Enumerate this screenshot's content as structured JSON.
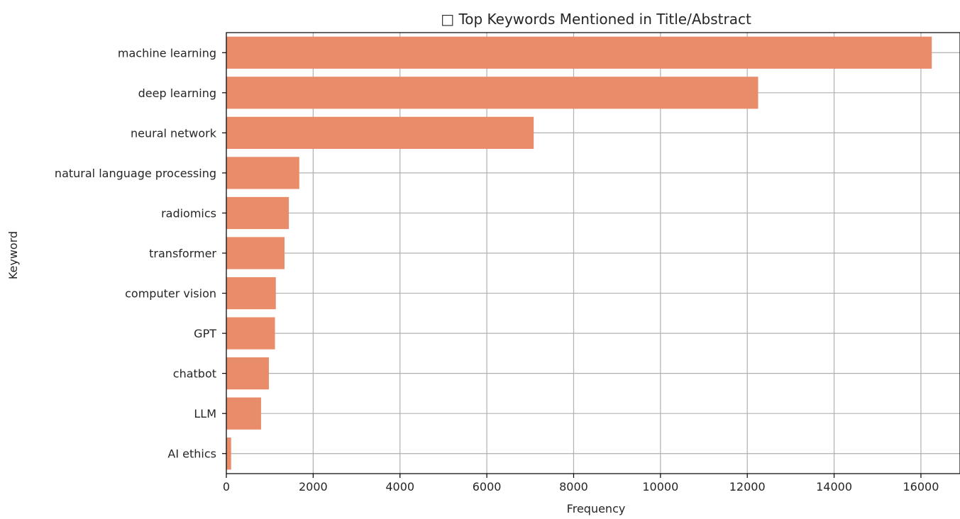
{
  "chart_data": {
    "type": "bar",
    "orientation": "horizontal",
    "title": "□ Top Keywords Mentioned in Title/Abstract",
    "xlabel": "Frequency",
    "ylabel": "Keyword",
    "categories": [
      "machine learning",
      "deep learning",
      "neural network",
      "natural language processing",
      "radiomics",
      "transformer",
      "computer vision",
      "GPT",
      "chatbot",
      "LLM",
      "AI ethics"
    ],
    "values": [
      16250,
      12250,
      7080,
      1680,
      1440,
      1340,
      1140,
      1120,
      980,
      800,
      110
    ],
    "xlim": [
      0,
      16900
    ],
    "xticks": [
      0,
      2000,
      4000,
      6000,
      8000,
      10000,
      12000,
      14000,
      16000
    ],
    "grid": true,
    "bar_color": "#e98c6a",
    "grid_color": "#b0b0b0",
    "legend": "none"
  }
}
